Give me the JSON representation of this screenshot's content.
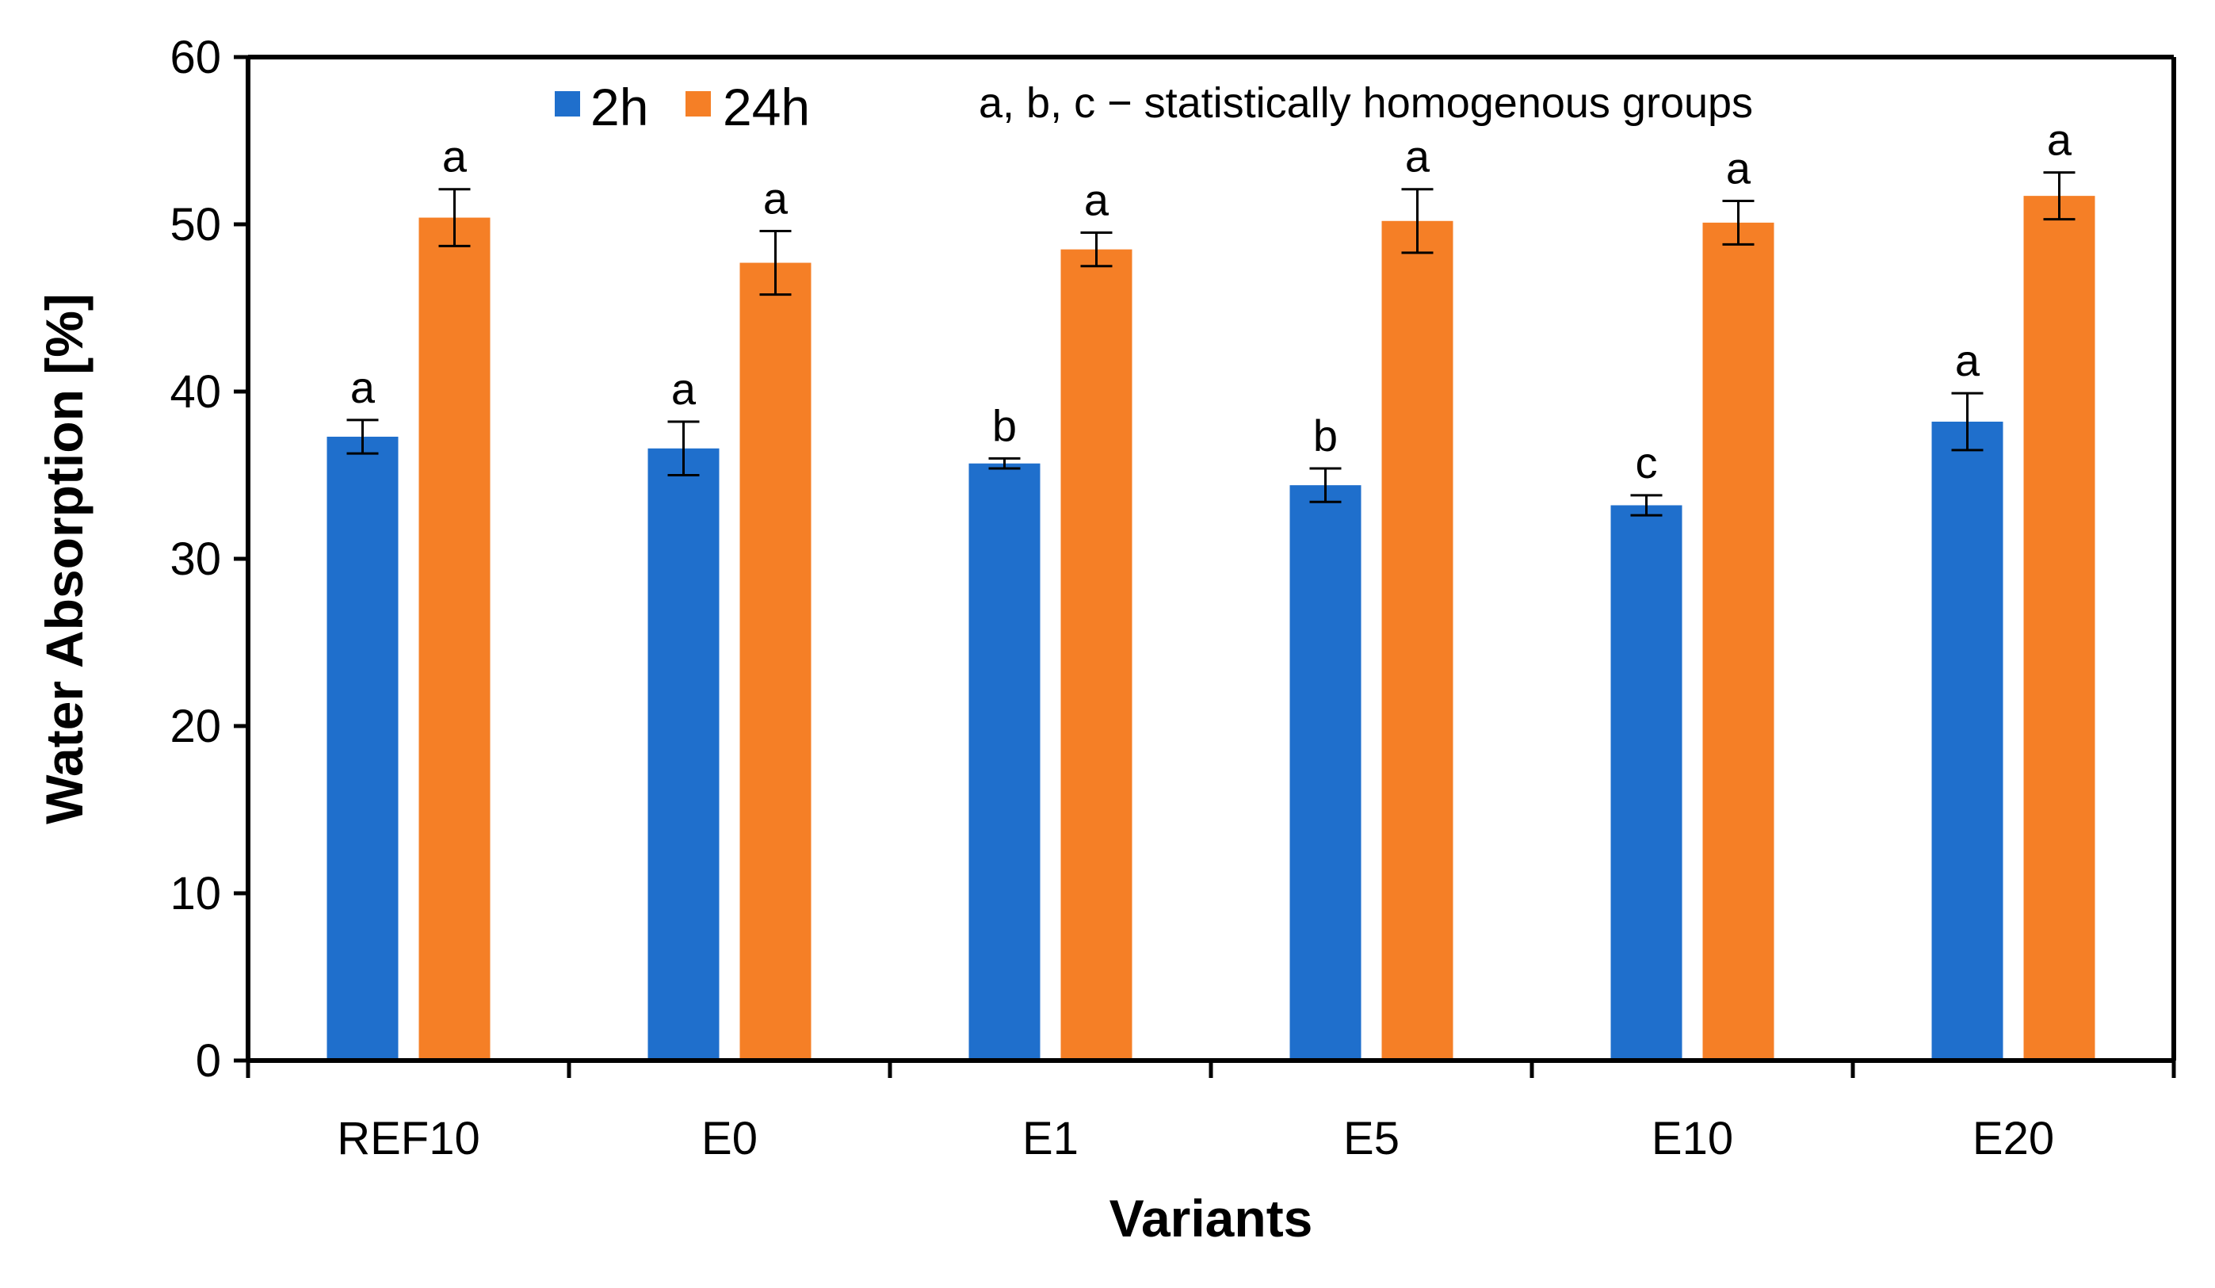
{
  "chart_data": {
    "type": "bar",
    "title": "",
    "xlabel": "Variants",
    "ylabel": "Water Absorption [%]",
    "ylim": [
      0,
      60
    ],
    "yticks": [
      0,
      10,
      20,
      30,
      40,
      50,
      60
    ],
    "categories": [
      "REF10",
      "E0",
      "E1",
      "E5",
      "E10",
      "E20"
    ],
    "series": [
      {
        "name": "2h",
        "color": "#1f6fcc",
        "values": [
          37.3,
          36.6,
          35.7,
          34.4,
          33.2,
          38.2
        ],
        "errors": [
          1.0,
          1.6,
          0.3,
          1.0,
          0.6,
          1.7
        ],
        "groups": [
          "a",
          "a",
          "b",
          "b",
          "c",
          "a"
        ]
      },
      {
        "name": "24h",
        "color": "#f57f26",
        "values": [
          50.4,
          47.7,
          48.5,
          50.2,
          50.1,
          51.7
        ],
        "errors": [
          1.7,
          1.9,
          1.0,
          1.9,
          1.3,
          1.4
        ],
        "groups": [
          "a",
          "a",
          "a",
          "a",
          "a",
          "a"
        ]
      }
    ],
    "legend_position": "top-left",
    "annotation": "a, b, c − statistically  homogenous  groups",
    "grid": false
  }
}
